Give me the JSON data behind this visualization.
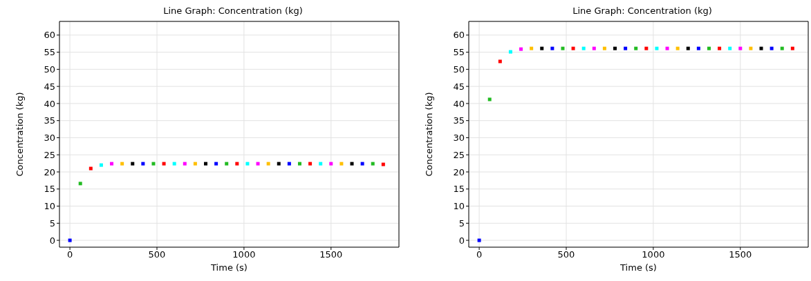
{
  "chart_data": [
    {
      "type": "scatter",
      "title": "Line Graph: Concentration (kg)",
      "xlabel": "Time (s)",
      "ylabel": "Concentration (kg)",
      "x": [
        0,
        60,
        120,
        180,
        240,
        300,
        360,
        420,
        480,
        540,
        600,
        660,
        720,
        780,
        840,
        900,
        960,
        1020,
        1080,
        1140,
        1200,
        1260,
        1320,
        1380,
        1440,
        1500,
        1560,
        1620,
        1680,
        1740,
        1800
      ],
      "values": [
        0,
        16.6,
        21,
        22,
        22.4,
        22.4,
        22.4,
        22.4,
        22.4,
        22.4,
        22.4,
        22.4,
        22.4,
        22.4,
        22.4,
        22.4,
        22.4,
        22.4,
        22.4,
        22.4,
        22.4,
        22.4,
        22.4,
        22.4,
        22.4,
        22.4,
        22.4,
        22.4,
        22.4,
        22.4,
        22.2
      ],
      "colors": [
        "#0000ff",
        "#22bb22",
        "#ff0000",
        "#00ffff",
        "#ff00ff",
        "#ffbf00",
        "#000000",
        "#0000ff",
        "#22bb22",
        "#ff0000",
        "#00ffff",
        "#ff00ff",
        "#ffbf00",
        "#000000",
        "#0000ff",
        "#22bb22",
        "#ff0000",
        "#00ffff",
        "#ff00ff",
        "#ffbf00",
        "#000000",
        "#0000ff",
        "#22bb22",
        "#ff0000",
        "#00ffff",
        "#ff00ff",
        "#ffbf00",
        "#000000",
        "#0000ff",
        "#22bb22",
        "#ff0000"
      ],
      "xlim": [
        -60,
        1890
      ],
      "xticks": [
        0,
        500,
        1000,
        1500
      ],
      "ylim": [
        -2,
        64
      ],
      "yticks": [
        0,
        5,
        10,
        15,
        20,
        25,
        30,
        35,
        40,
        45,
        50,
        55,
        60
      ],
      "grid": true,
      "marker": "square"
    },
    {
      "type": "scatter",
      "title": "Line Graph: Concentration (kg)",
      "xlabel": "Time (s)",
      "ylabel": "Concentration (kg)",
      "x": [
        0,
        60,
        120,
        180,
        240,
        300,
        360,
        420,
        480,
        540,
        600,
        660,
        720,
        780,
        840,
        900,
        960,
        1020,
        1080,
        1140,
        1200,
        1260,
        1320,
        1380,
        1440,
        1500,
        1560,
        1620,
        1680,
        1740,
        1800
      ],
      "values": [
        0,
        41.2,
        52.3,
        55.1,
        55.9,
        56.1,
        56.1,
        56.1,
        56.1,
        56.1,
        56.1,
        56.1,
        56.1,
        56.1,
        56.1,
        56.1,
        56.1,
        56.1,
        56.1,
        56.1,
        56.1,
        56.1,
        56.1,
        56.1,
        56.1,
        56.1,
        56.1,
        56.1,
        56.1,
        56.1,
        56.1
      ],
      "colors": [
        "#0000ff",
        "#22bb22",
        "#ff0000",
        "#00ffff",
        "#ff00ff",
        "#ffbf00",
        "#000000",
        "#0000ff",
        "#22bb22",
        "#ff0000",
        "#00ffff",
        "#ff00ff",
        "#ffbf00",
        "#000000",
        "#0000ff",
        "#22bb22",
        "#ff0000",
        "#00ffff",
        "#ff00ff",
        "#ffbf00",
        "#000000",
        "#0000ff",
        "#22bb22",
        "#ff0000",
        "#00ffff",
        "#ff00ff",
        "#ffbf00",
        "#000000",
        "#0000ff",
        "#22bb22",
        "#ff0000"
      ],
      "xlim": [
        -60,
        1890
      ],
      "xticks": [
        0,
        500,
        1000,
        1500
      ],
      "ylim": [
        -2,
        64
      ],
      "yticks": [
        0,
        5,
        10,
        15,
        20,
        25,
        30,
        35,
        40,
        45,
        50,
        55,
        60
      ],
      "grid": true,
      "marker": "square"
    }
  ]
}
